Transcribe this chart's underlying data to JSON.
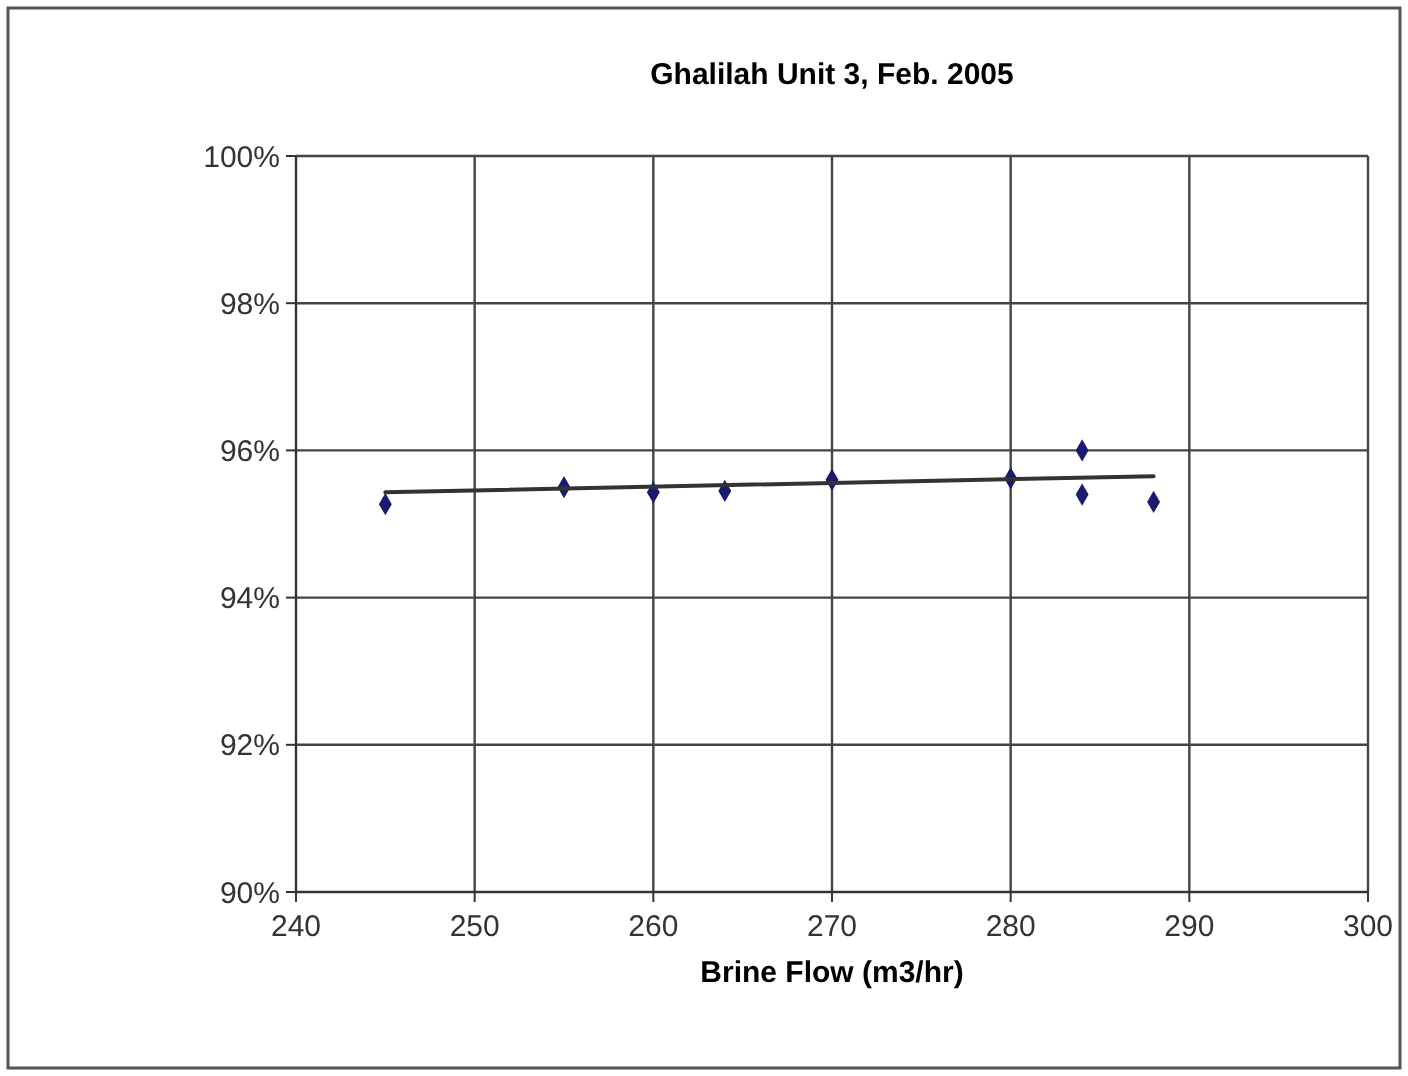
{
  "chart_data": {
    "type": "scatter",
    "title": "Ghalilah Unit 3, Feb. 2005",
    "xlabel": "Brine Flow (m3/hr)",
    "xlim": [
      240,
      300
    ],
    "xticks": [
      240,
      250,
      260,
      270,
      280,
      290,
      300
    ],
    "ylim": [
      90,
      100
    ],
    "yticks": [
      {
        "value": 90,
        "label": "90%"
      },
      {
        "value": 92,
        "label": "92%"
      },
      {
        "value": 94,
        "label": "94%"
      },
      {
        "value": 96,
        "label": "96%"
      },
      {
        "value": 98,
        "label": "98%"
      },
      {
        "value": 100,
        "label": "100%"
      }
    ],
    "grid": true,
    "series": [
      {
        "marker": "diamond",
        "color": "#1a1a6e",
        "x": [
          245,
          255,
          260,
          264,
          270,
          280,
          284,
          284,
          288
        ],
        "values": [
          95.27,
          95.5,
          95.43,
          95.45,
          95.6,
          95.62,
          96.0,
          95.4,
          95.3
        ]
      },
      {
        "type": "line",
        "color": "#333333",
        "x": [
          245,
          288
        ],
        "values": [
          95.43,
          95.65
        ]
      }
    ]
  }
}
